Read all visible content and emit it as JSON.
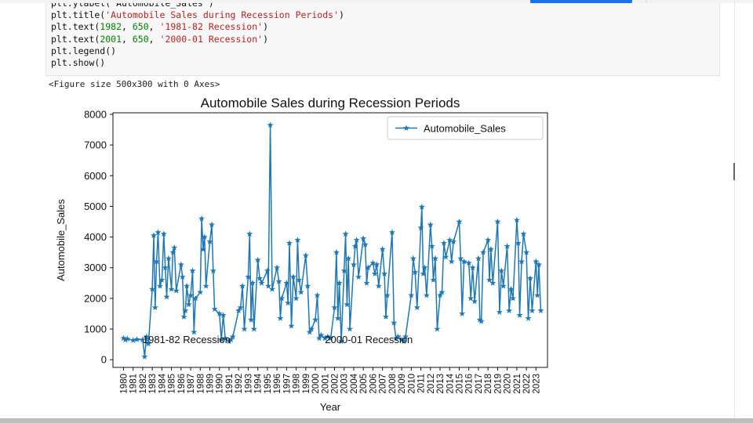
{
  "toolbar": {
    "run_button_label": "",
    "top_icon": "three-dot-icon"
  },
  "code_cell": {
    "lines": [
      [
        {
          "t": "fn",
          "v": "plt.ylabel('Automobile_Sales')"
        }
      ],
      [
        {
          "t": "fn",
          "v": "plt.title("
        },
        {
          "t": "str",
          "v": "'Automobile Sales during Recession Periods'"
        },
        {
          "t": "fn",
          "v": ")"
        }
      ],
      [
        {
          "t": "fn",
          "v": "plt.text("
        },
        {
          "t": "num",
          "v": "1982"
        },
        {
          "t": "fn",
          "v": ", "
        },
        {
          "t": "num",
          "v": "650"
        },
        {
          "t": "fn",
          "v": ", "
        },
        {
          "t": "str",
          "v": "'1981-82 Recession'"
        },
        {
          "t": "fn",
          "v": ")"
        }
      ],
      [
        {
          "t": "fn",
          "v": "plt.text("
        },
        {
          "t": "num",
          "v": "2001"
        },
        {
          "t": "fn",
          "v": ", "
        },
        {
          "t": "num",
          "v": "650"
        },
        {
          "t": "fn",
          "v": ", "
        },
        {
          "t": "str",
          "v": "'2000-01 Recession'"
        },
        {
          "t": "fn",
          "v": ")"
        }
      ],
      [
        {
          "t": "fn",
          "v": "plt.legend()"
        }
      ],
      [
        {
          "t": "fn",
          "v": "plt.show()"
        }
      ]
    ]
  },
  "output": {
    "figure_text": "<Figure size 500x300 with 0 Axes>"
  },
  "chart_data": {
    "type": "line",
    "title": "Automobile Sales during Recession Periods",
    "xlabel": "Year",
    "ylabel": "Automobile_Sales",
    "ylim": [
      -250,
      8050
    ],
    "xlim": [
      1978.9,
      2024.2
    ],
    "yticks": [
      0,
      1000,
      2000,
      3000,
      4000,
      5000,
      6000,
      7000,
      8000
    ],
    "xticks": [
      "1980",
      "1981",
      "1982",
      "1983",
      "1984",
      "1985",
      "1986",
      "1987",
      "1988",
      "1989",
      "1990",
      "1991",
      "1992",
      "1993",
      "1994",
      "1995",
      "1996",
      "1997",
      "1998",
      "1999",
      "2000",
      "2001",
      "2002",
      "2003",
      "2004",
      "2005",
      "2006",
      "2007",
      "2008",
      "2009",
      "2010",
      "2011",
      "2012",
      "2013",
      "2014",
      "2015",
      "2016",
      "2017",
      "2018",
      "2019",
      "2020",
      "2021",
      "2022",
      "2023"
    ],
    "legend": {
      "position": "top-right",
      "entries": [
        "Automobile_Sales"
      ]
    },
    "annotations": [
      {
        "x": 1982,
        "y": 650,
        "text": "1981-82 Recession"
      },
      {
        "x": 2001,
        "y": 650,
        "text": "2000-01 Recession"
      }
    ],
    "series": [
      {
        "name": "Automobile_Sales",
        "color": "#1f77b4",
        "marker": "star",
        "points": [
          [
            1980.0,
            700
          ],
          [
            1980.2,
            650
          ],
          [
            1980.4,
            680
          ],
          [
            1981.0,
            630
          ],
          [
            1981.4,
            660
          ],
          [
            1982.0,
            650
          ],
          [
            1982.2,
            100
          ],
          [
            1982.4,
            750
          ],
          [
            1982.6,
            520
          ],
          [
            1983.0,
            2300
          ],
          [
            1983.15,
            4050
          ],
          [
            1983.3,
            1700
          ],
          [
            1983.45,
            3200
          ],
          [
            1983.6,
            4150
          ],
          [
            1983.8,
            2400
          ],
          [
            1984.0,
            2600
          ],
          [
            1984.2,
            4100
          ],
          [
            1984.35,
            3000
          ],
          [
            1984.5,
            2050
          ],
          [
            1984.7,
            3300
          ],
          [
            1985.0,
            2300
          ],
          [
            1985.15,
            3500
          ],
          [
            1985.3,
            3650
          ],
          [
            1985.5,
            2250
          ],
          [
            1986.0,
            3100
          ],
          [
            1986.15,
            2700
          ],
          [
            1986.3,
            1400
          ],
          [
            1986.45,
            1600
          ],
          [
            1986.6,
            2400
          ],
          [
            1986.8,
            1800
          ],
          [
            1987.0,
            2100
          ],
          [
            1987.2,
            2900
          ],
          [
            1987.35,
            900
          ],
          [
            1987.5,
            2000
          ],
          [
            1988.0,
            2200
          ],
          [
            1988.15,
            4600
          ],
          [
            1988.3,
            3600
          ],
          [
            1988.45,
            4000
          ],
          [
            1988.6,
            2400
          ],
          [
            1989.0,
            3850
          ],
          [
            1989.2,
            4400
          ],
          [
            1989.35,
            2900
          ],
          [
            1989.5,
            1650
          ],
          [
            1990.0,
            1500
          ],
          [
            1990.2,
            650
          ],
          [
            1990.4,
            1450
          ],
          [
            1990.6,
            700
          ],
          [
            1991.0,
            600
          ],
          [
            1991.2,
            650
          ],
          [
            1991.4,
            750
          ],
          [
            1992.0,
            1600
          ],
          [
            1992.2,
            1700
          ],
          [
            1992.4,
            2400
          ],
          [
            1992.6,
            1000
          ],
          [
            1993.0,
            2700
          ],
          [
            1993.15,
            4100
          ],
          [
            1993.3,
            1300
          ],
          [
            1993.45,
            2500
          ],
          [
            1993.6,
            1000
          ],
          [
            1994.0,
            3250
          ],
          [
            1994.2,
            2650
          ],
          [
            1994.4,
            2500
          ],
          [
            1995.0,
            2900
          ],
          [
            1995.1,
            2400
          ],
          [
            1995.3,
            7650
          ],
          [
            1995.5,
            2300
          ],
          [
            1996.0,
            3000
          ],
          [
            1996.2,
            2550
          ],
          [
            1996.35,
            1350
          ],
          [
            1996.5,
            2000
          ],
          [
            1997.0,
            2500
          ],
          [
            1997.15,
            1850
          ],
          [
            1997.3,
            3800
          ],
          [
            1997.5,
            1100
          ],
          [
            1997.7,
            2700
          ],
          [
            1998.0,
            2000
          ],
          [
            1998.15,
            3900
          ],
          [
            1998.3,
            2600
          ],
          [
            1998.5,
            2200
          ],
          [
            1999.0,
            3400
          ],
          [
            1999.2,
            2400
          ],
          [
            1999.4,
            900
          ],
          [
            1999.6,
            1000
          ],
          [
            2000.0,
            1300
          ],
          [
            2000.2,
            2100
          ],
          [
            2000.4,
            700
          ],
          [
            2000.6,
            800
          ],
          [
            2001.0,
            700
          ],
          [
            2001.3,
            750
          ],
          [
            2001.6,
            700
          ],
          [
            2002.0,
            1700
          ],
          [
            2002.2,
            3500
          ],
          [
            2002.35,
            1350
          ],
          [
            2002.5,
            2500
          ],
          [
            2002.7,
            600
          ],
          [
            2003.0,
            2900
          ],
          [
            2003.15,
            4100
          ],
          [
            2003.3,
            1800
          ],
          [
            2003.45,
            3300
          ],
          [
            2003.6,
            1000
          ],
          [
            2004.0,
            3100
          ],
          [
            2004.15,
            3700
          ],
          [
            2004.3,
            3900
          ],
          [
            2004.5,
            2700
          ],
          [
            2005.0,
            3950
          ],
          [
            2005.2,
            3750
          ],
          [
            2005.35,
            2500
          ],
          [
            2005.5,
            3000
          ],
          [
            2006.0,
            3150
          ],
          [
            2006.2,
            2800
          ],
          [
            2006.4,
            3100
          ],
          [
            2006.6,
            2400
          ],
          [
            2007.0,
            3600
          ],
          [
            2007.2,
            2800
          ],
          [
            2007.35,
            1400
          ],
          [
            2007.5,
            2100
          ],
          [
            2008.0,
            4150
          ],
          [
            2008.2,
            1200
          ],
          [
            2008.4,
            700
          ],
          [
            2008.6,
            750
          ],
          [
            2009.0,
            650
          ],
          [
            2009.2,
            600
          ],
          [
            2009.4,
            750
          ],
          [
            2010.0,
            2100
          ],
          [
            2010.2,
            3300
          ],
          [
            2010.4,
            2850
          ],
          [
            2010.6,
            1700
          ],
          [
            2011.0,
            4300
          ],
          [
            2011.1,
            4980
          ],
          [
            2011.25,
            2800
          ],
          [
            2011.4,
            3000
          ],
          [
            2011.6,
            2100
          ],
          [
            2012.0,
            4400
          ],
          [
            2012.15,
            3700
          ],
          [
            2012.3,
            2600
          ],
          [
            2012.5,
            3300
          ],
          [
            2012.7,
            1000
          ],
          [
            2013.0,
            2100
          ],
          [
            2013.2,
            2200
          ],
          [
            2013.4,
            3800
          ],
          [
            2013.6,
            3350
          ],
          [
            2014.0,
            3900
          ],
          [
            2014.2,
            3200
          ],
          [
            2014.4,
            3850
          ],
          [
            2015.0,
            4500
          ],
          [
            2015.15,
            3300
          ],
          [
            2015.3,
            1500
          ],
          [
            2015.5,
            3200
          ],
          [
            2016.0,
            3150
          ],
          [
            2016.2,
            2000
          ],
          [
            2016.4,
            3000
          ],
          [
            2016.6,
            1900
          ],
          [
            2017.0,
            3300
          ],
          [
            2017.15,
            1300
          ],
          [
            2017.3,
            1250
          ],
          [
            2017.5,
            3500
          ],
          [
            2018.0,
            3900
          ],
          [
            2018.15,
            2600
          ],
          [
            2018.3,
            3600
          ],
          [
            2018.5,
            2500
          ],
          [
            2019.0,
            4500
          ],
          [
            2019.2,
            1550
          ],
          [
            2019.4,
            2900
          ],
          [
            2019.6,
            2400
          ],
          [
            2020.0,
            3700
          ],
          [
            2020.2,
            1600
          ],
          [
            2020.4,
            2300
          ],
          [
            2020.6,
            2000
          ],
          [
            2021.0,
            4550
          ],
          [
            2021.15,
            3800
          ],
          [
            2021.3,
            1450
          ],
          [
            2021.5,
            3200
          ],
          [
            2021.7,
            4100
          ],
          [
            2022.0,
            3500
          ],
          [
            2022.2,
            1350
          ],
          [
            2022.4,
            2650
          ],
          [
            2022.6,
            1600
          ],
          [
            2023.0,
            3200
          ],
          [
            2023.15,
            2100
          ],
          [
            2023.3,
            3100
          ],
          [
            2023.5,
            1600
          ]
        ]
      }
    ]
  }
}
